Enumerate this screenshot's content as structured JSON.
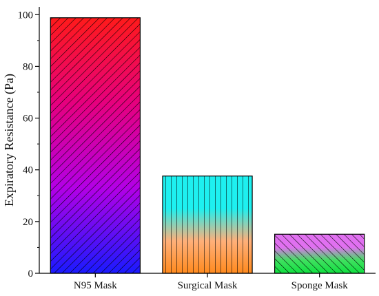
{
  "chart_data": {
    "type": "bar",
    "title": "",
    "xlabel": "",
    "ylabel": "Expiratory Resistance (Pa)",
    "ylim": [
      0,
      103
    ],
    "yticks": [
      0,
      20,
      40,
      60,
      80,
      100
    ],
    "yticks_labels": [
      "0",
      "20",
      "40",
      "60",
      "80",
      "100"
    ],
    "categories": [
      "N95 Mask",
      "Surgical Mask",
      "Sponge Mask"
    ],
    "values": [
      98.8,
      37.6,
      15.1
    ],
    "grid": false,
    "legend": "none",
    "bar_styles": [
      {
        "gradient": [
          "#ff1a1a",
          "#e6007e",
          "#b300e6",
          "#1a1aff"
        ],
        "hatch": "diagonal-right"
      },
      {
        "gradient": [
          "#1ef0f0",
          "#1ef0f0",
          "#ffb07a",
          "#ff8a1e"
        ],
        "hatch": "vertical"
      },
      {
        "gradient": [
          "#e070f0",
          "#e070f0",
          "#40e060",
          "#10e040"
        ],
        "hatch": "diagonal-left"
      }
    ]
  }
}
